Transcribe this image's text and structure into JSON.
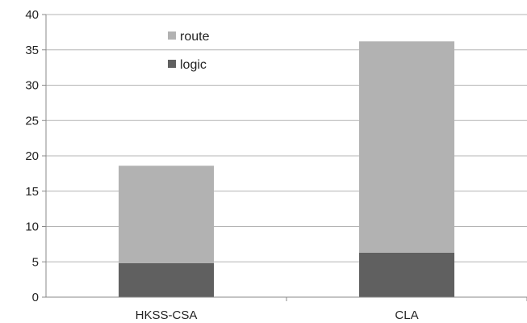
{
  "chart_data": {
    "type": "bar",
    "stacked": true,
    "categories": [
      "HKSS-CSA",
      "CLA"
    ],
    "series": [
      {
        "name": "logic",
        "values": [
          4.8,
          6.3
        ],
        "color": "#606060"
      },
      {
        "name": "route",
        "values": [
          13.8,
          29.9
        ],
        "color": "#b2b2b2"
      }
    ],
    "ylim": [
      0,
      40
    ],
    "yticks": [
      0,
      5,
      10,
      15,
      20,
      25,
      30,
      35,
      40
    ],
    "grid": true,
    "legend_position": "top-left-inside",
    "legend_order": [
      "route",
      "logic"
    ],
    "title": "",
    "xlabel": "",
    "ylabel": ""
  }
}
